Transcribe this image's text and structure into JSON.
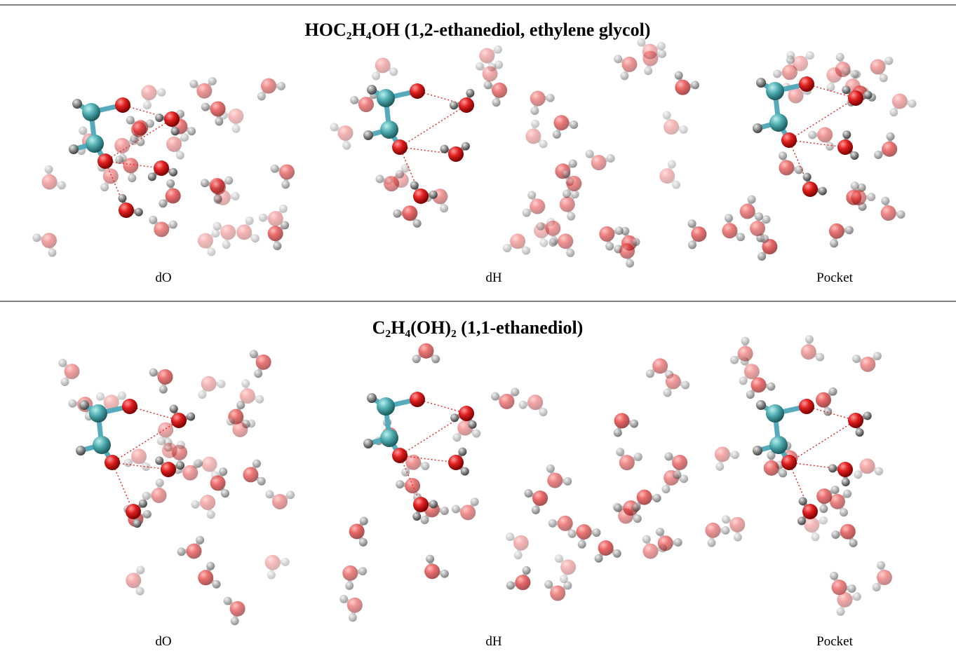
{
  "figure": {
    "rows": [
      {
        "title": "HOC₂H₄OH (1,2-ethanediol, ethylene glycol)",
        "labels": [
          "dO",
          "dH",
          "Pocket"
        ]
      },
      {
        "title": "C₂H₄(OH)₂ (1,1-ethanediol)",
        "labels": [
          "dO",
          "dH",
          "Pocket"
        ]
      }
    ]
  }
}
